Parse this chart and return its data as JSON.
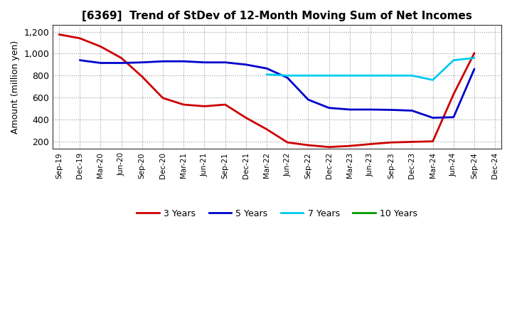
{
  "title": "[6369]  Trend of StDev of 12-Month Moving Sum of Net Incomes",
  "ylabel": "Amount (million yen)",
  "background_color": "#ffffff",
  "plot_bg_color": "#ffffff",
  "grid_color": "#999999",
  "x_labels": [
    "Sep-19",
    "Dec-19",
    "Mar-20",
    "Jun-20",
    "Sep-20",
    "Dec-20",
    "Mar-21",
    "Jun-21",
    "Sep-21",
    "Dec-21",
    "Mar-22",
    "Jun-22",
    "Sep-22",
    "Dec-22",
    "Mar-23",
    "Jun-23",
    "Sep-23",
    "Dec-23",
    "Mar-24",
    "Jun-24",
    "Sep-24",
    "Dec-24"
  ],
  "ylim": [
    130,
    1260
  ],
  "yticks": [
    200,
    400,
    600,
    800,
    1000,
    1200
  ],
  "series": {
    "3 Years": {
      "color": "#cc0000",
      "linewidth": 2.0,
      "data_x": [
        0,
        1,
        2,
        3,
        4,
        5,
        6,
        7,
        8,
        9,
        10,
        11,
        12,
        13,
        14,
        15,
        16,
        17,
        18,
        19,
        20
      ],
      "data_y": [
        1175,
        1140,
        1065,
        960,
        790,
        595,
        535,
        520,
        535,
        415,
        310,
        190,
        165,
        148,
        158,
        175,
        190,
        195,
        200,
        630,
        1005
      ]
    },
    "5 Years": {
      "color": "#0000cc",
      "linewidth": 2.0,
      "data_x": [
        1,
        2,
        3,
        4,
        5,
        6,
        7,
        8,
        9,
        10,
        11,
        12,
        13,
        14,
        15,
        16,
        17,
        18,
        19,
        20
      ],
      "data_y": [
        940,
        915,
        915,
        920,
        930,
        930,
        920,
        920,
        900,
        865,
        780,
        580,
        505,
        490,
        490,
        487,
        480,
        415,
        420,
        860
      ]
    },
    "7 Years": {
      "color": "#00ccee",
      "linewidth": 2.0,
      "data_x": [
        10,
        11,
        12,
        13,
        14,
        15,
        16,
        17,
        18,
        19,
        20
      ],
      "data_y": [
        810,
        800,
        800,
        800,
        800,
        800,
        800,
        800,
        760,
        940,
        960
      ]
    },
    "10 Years": {
      "color": "#009900",
      "linewidth": 2.0,
      "data_x": [],
      "data_y": []
    }
  },
  "legend_labels": [
    "3 Years",
    "5 Years",
    "7 Years",
    "10 Years"
  ],
  "legend_colors": [
    "#cc0000",
    "#0000cc",
    "#00ccee",
    "#009900"
  ]
}
